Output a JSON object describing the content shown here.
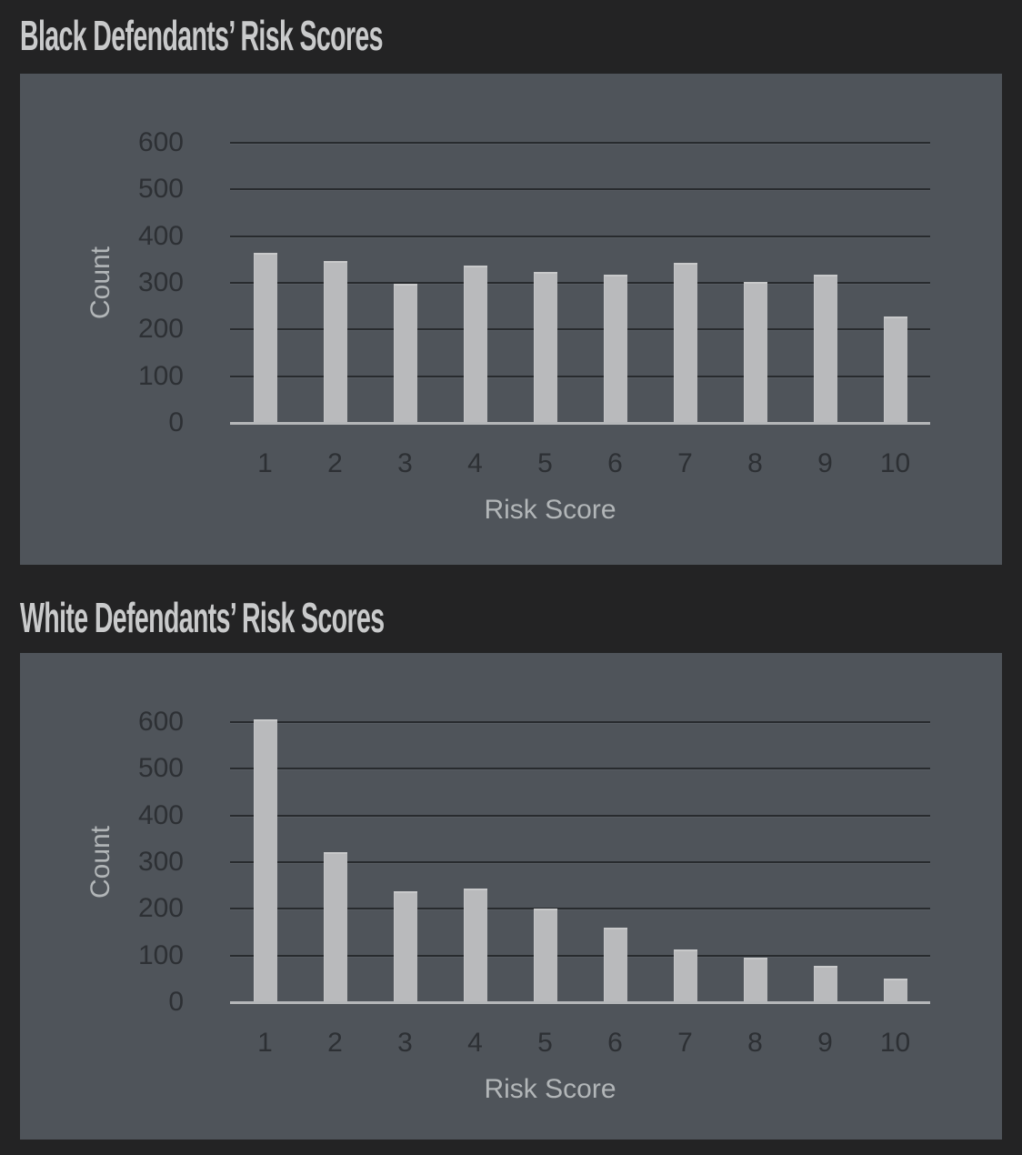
{
  "page": {
    "background_color": "#232324",
    "panel_color": "#4f545a",
    "bar_color": "#b9babc",
    "gridline_color": "#282b2e",
    "baseline_color": "#b5b7b9",
    "tick_text_color": "#2d3034",
    "axis_title_color": "#b2b6b8",
    "chart_title_color": "#c9cacb"
  },
  "chart_data": [
    {
      "type": "bar",
      "title": "Black Defendants’ Risk Scores",
      "xlabel": "Risk Score",
      "ylabel": "Count",
      "categories": [
        "1",
        "2",
        "3",
        "4",
        "5",
        "6",
        "7",
        "8",
        "9",
        "10"
      ],
      "values": [
        365,
        346,
        298,
        337,
        323,
        318,
        343,
        301,
        317,
        227
      ],
      "ylim": [
        0,
        600
      ],
      "yticks": [
        0,
        100,
        200,
        300,
        400,
        500,
        600
      ],
      "grid": "horizontal",
      "legend": "none"
    },
    {
      "type": "bar",
      "title": "White Defendants’ Risk Scores",
      "xlabel": "Risk Score",
      "ylabel": "Count",
      "categories": [
        "1",
        "2",
        "3",
        "4",
        "5",
        "6",
        "7",
        "8",
        "9",
        "10"
      ],
      "values": [
        605,
        321,
        238,
        243,
        200,
        160,
        113,
        96,
        77,
        50
      ],
      "ylim": [
        0,
        600
      ],
      "yticks": [
        0,
        100,
        200,
        300,
        400,
        500,
        600
      ],
      "grid": "horizontal",
      "legend": "none"
    }
  ]
}
